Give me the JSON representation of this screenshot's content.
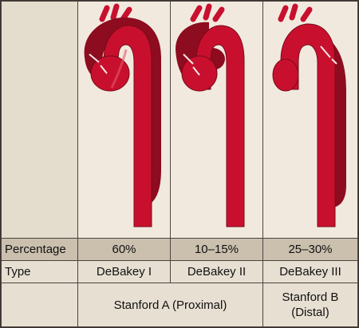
{
  "rows": {
    "percentage": {
      "label": "Percentage",
      "values": [
        "60%",
        "10–15%",
        "25–30%"
      ]
    },
    "type": {
      "label": "Type",
      "values": [
        "DeBakey I",
        "DeBakey II",
        "DeBakey III"
      ]
    },
    "stanford": {
      "proximal": "Stanford A (Proximal)",
      "distal": "Stanford B (Distal)"
    }
  },
  "illustrations": [
    {
      "name": "aorta-debakey-i",
      "dissection_extent": "ascending-arch-descending"
    },
    {
      "name": "aorta-debakey-ii",
      "dissection_extent": "ascending-only"
    },
    {
      "name": "aorta-debakey-iii",
      "dissection_extent": "descending-only"
    }
  ],
  "colors": {
    "vessel": "#c8102e",
    "vessel_dark": "#7a0a18",
    "false_lumen": "#8e0c1f",
    "background": "#e4dccd",
    "image_bg": "#f1e9de",
    "shaded_row": "#cbbfae"
  }
}
